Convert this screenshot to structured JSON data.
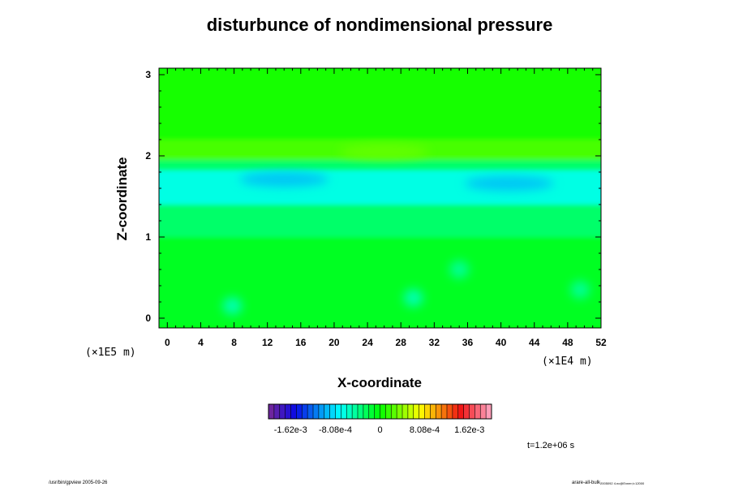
{
  "chart_data": {
    "type": "heatmap",
    "title": "disturbunce of nondimensional pressure",
    "xlabel": "X-coordinate",
    "ylabel": "Z-coordinate",
    "x_unit": "(×1E4 m)",
    "y_unit": "(×1E5 m)",
    "xlim": [
      -1,
      52
    ],
    "ylim": [
      -0.12,
      3.08
    ],
    "x_ticks": [
      0,
      4,
      8,
      12,
      16,
      20,
      24,
      28,
      32,
      36,
      40,
      44,
      48,
      52
    ],
    "y_ticks": [
      0,
      1,
      2,
      3
    ],
    "x_minor_step": 1,
    "y_minor_step": 0.2,
    "colorbar": {
      "tick_values": [
        -0.00162,
        -0.000808,
        0,
        0.000808,
        0.00162
      ],
      "tick_labels": [
        "-1.62e-3",
        "-8.08e-4",
        "0",
        "8.08e-4",
        "1.62e-3"
      ],
      "range": [
        -0.00202,
        0.00202
      ],
      "levels": 40
    },
    "field_bands": [
      {
        "z_from": 2.2,
        "z_to": 3.08,
        "value": 5e-05
      },
      {
        "z_from": 1.95,
        "z_to": 2.2,
        "value": 0.0002
      },
      {
        "z_from": 1.82,
        "z_to": 1.95,
        "value": -0.0003
      },
      {
        "z_from": 1.4,
        "z_to": 1.82,
        "value": -0.00065
      },
      {
        "z_from": 1.0,
        "z_to": 1.4,
        "value": -0.0003
      },
      {
        "z_from": -0.12,
        "z_to": 1.0,
        "value": -0.0001
      }
    ],
    "features": [
      {
        "x": 14,
        "z": 1.71,
        "value": -0.00095
      },
      {
        "x": 41,
        "z": 1.66,
        "value": -0.00095
      },
      {
        "x": 7.8,
        "z": 0.15,
        "value": -0.0006
      },
      {
        "x": 29.5,
        "z": 0.25,
        "value": -0.0006
      },
      {
        "x": 35,
        "z": 0.6,
        "value": -0.0005
      },
      {
        "x": 49.5,
        "z": 0.35,
        "value": -0.0005
      },
      {
        "x": 26,
        "z": 2.05,
        "value": 0.0003
      }
    ],
    "time_label": "t=1.2e+06 s"
  },
  "footer": {
    "left": "/usr/bin/gpview 2005-09-26",
    "right": "arare-all-bulk",
    "right_sub": "2005092 4.nc@Exner,t=12000"
  },
  "colors": {
    "background": "#00ff00",
    "frame": "#000000"
  }
}
